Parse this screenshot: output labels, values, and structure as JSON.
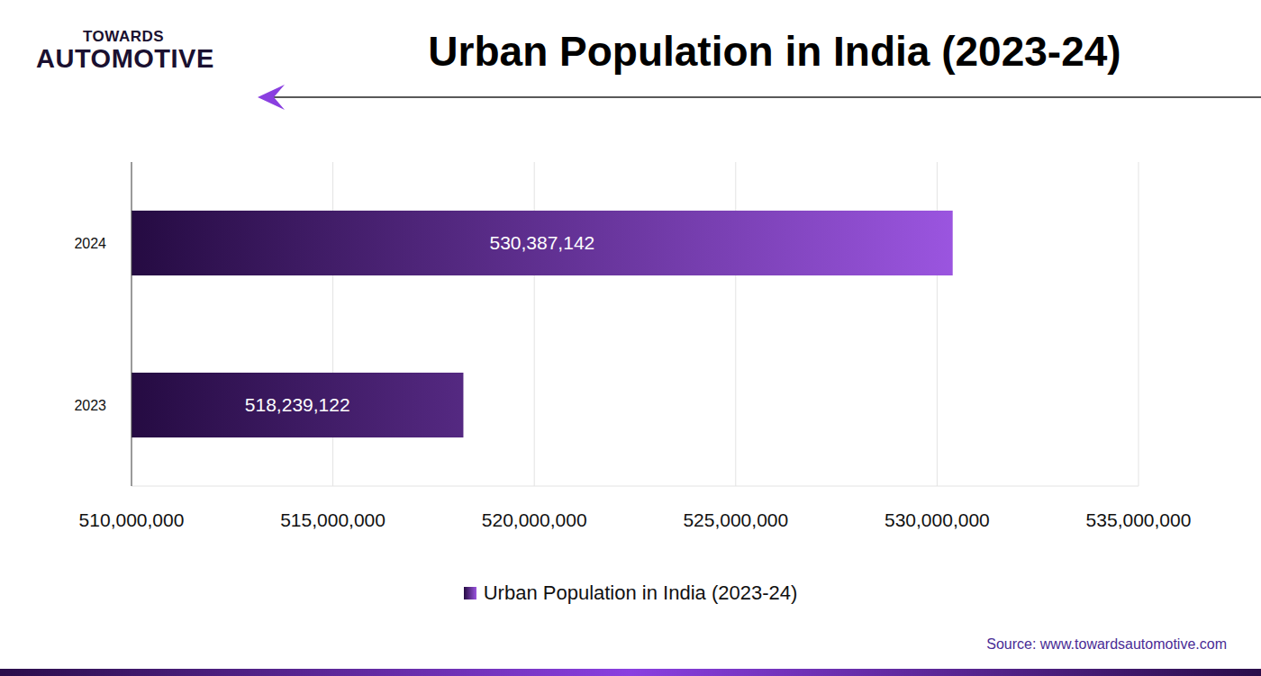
{
  "chart_data": {
    "type": "bar",
    "title": "Urban Population in India (2023-24)",
    "logo": [
      "TOWARDS",
      "AUTOMOTIVE"
    ],
    "source": "Source: www.towardsautomotive.com",
    "orientation": "horizontal",
    "categories": [
      "2024",
      "2023"
    ],
    "series": [
      {
        "name": "Urban Population in India (2023-24)",
        "color": "#9b55e0",
        "values": [
          530387142,
          518239122
        ],
        "value_labels": [
          "530,387,142",
          "518,239,122"
        ]
      }
    ],
    "xlim": [
      510000000,
      535000000
    ],
    "xticks": [
      {
        "value": 510000000,
        "label": "510,000,000"
      },
      {
        "value": 515000000,
        "label": "515,000,000"
      },
      {
        "value": 520000000,
        "label": "520,000,000"
      },
      {
        "value": 525000000,
        "label": "525,000,000"
      },
      {
        "value": 530000000,
        "label": "530,000,000"
      },
      {
        "value": 535000000,
        "label": "535,000,000"
      }
    ],
    "grid": true,
    "legend": "bottom",
    "data_labels": true
  }
}
